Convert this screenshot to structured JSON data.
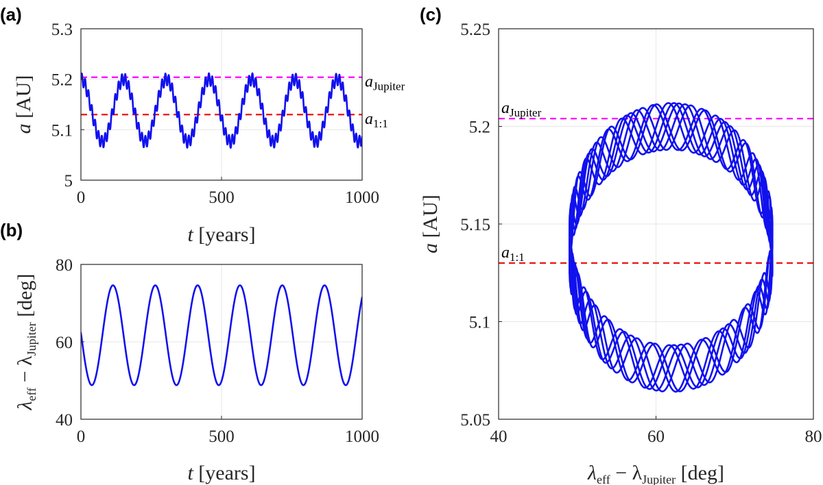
{
  "chart_data": [
    {
      "id": "a",
      "panel_label": "(a)",
      "type": "line",
      "xlabel": {
        "var": "t",
        "unit": "[years]"
      },
      "ylabel": {
        "var": "a",
        "unit": "[AU]"
      },
      "xlim": [
        0,
        1000
      ],
      "ylim": [
        5.0,
        5.3
      ],
      "xticks": [
        0,
        500,
        1000
      ],
      "yticks": [
        5,
        5.1,
        5.2,
        5.3
      ],
      "xtick_labels": [
        "0",
        "500",
        "1000"
      ],
      "ytick_labels": [
        "5",
        "5.1",
        "5.2",
        "5.3"
      ],
      "grid": true,
      "series": [
        {
          "color": "#1111ee",
          "model": {
            "kind": "sinusoid",
            "mean": 5.138,
            "amplitude": 0.062,
            "period": 152,
            "phase_peak_t": 0,
            "ripple_amplitude": 0.012,
            "ripple_period": 11.9
          }
        }
      ],
      "reference_lines": [
        {
          "name": "Jupiter",
          "y": 5.204,
          "color": "#ff00ff",
          "label": {
            "main": "a",
            "sub": "Jupiter"
          }
        },
        {
          "name": "1:1",
          "y": 5.13,
          "color": "#ee1111",
          "label": {
            "main": "a",
            "sub": "1:1"
          }
        }
      ]
    },
    {
      "id": "b",
      "panel_label": "(b)",
      "type": "line",
      "xlabel": {
        "var": "t",
        "unit": "[years]"
      },
      "ylabel": {
        "var": "λ",
        "sub1": "eff",
        "mid": " − λ",
        "sub2": "Jupiter",
        "unit": "[deg]"
      },
      "xlim": [
        0,
        1000
      ],
      "ylim": [
        40,
        80
      ],
      "xticks": [
        0,
        500,
        1000
      ],
      "yticks": [
        40,
        60,
        80
      ],
      "xtick_labels": [
        "0",
        "500",
        "1000"
      ],
      "ytick_labels": [
        "40",
        "60",
        "80"
      ],
      "grid": true,
      "series": [
        {
          "color": "#1111ee",
          "model": {
            "kind": "sinusoid",
            "mean": 61.7,
            "amplitude": 12.9,
            "period": 150.5,
            "phase_peak_t": 114
          }
        }
      ]
    },
    {
      "id": "c",
      "panel_label": "(c)",
      "type": "line",
      "xlabel": {
        "var": "λ",
        "sub1": "eff",
        "mid": " − λ",
        "sub2": "Jupiter",
        "unit": "[deg]"
      },
      "ylabel": {
        "var": "a",
        "unit": "[AU]"
      },
      "xlim": [
        40,
        80
      ],
      "ylim": [
        5.05,
        5.25
      ],
      "xticks": [
        40,
        60,
        80
      ],
      "yticks": [
        5.05,
        5.1,
        5.15,
        5.2,
        5.25
      ],
      "xtick_labels": [
        "40",
        "60",
        "80"
      ],
      "ytick_labels": [
        "5.05",
        "5.1",
        "5.15",
        "5.2",
        "5.25"
      ],
      "grid": true,
      "series": [
        {
          "color": "#1111ee",
          "model": {
            "kind": "phase-loop",
            "center_x": 61.9,
            "center_y": 5.138,
            "radius_x": 12.9,
            "radius_y": 0.062,
            "ripple_amplitude": 0.012,
            "ripples_per_cycle": 12.7,
            "cycles": 6.6
          }
        }
      ],
      "reference_lines": [
        {
          "name": "Jupiter",
          "y": 5.204,
          "color": "#ff00ff",
          "label": {
            "main": "a",
            "sub": "Jupiter"
          }
        },
        {
          "name": "1:1",
          "y": 5.13,
          "color": "#ee1111",
          "label": {
            "main": "a",
            "sub": "1:1"
          }
        }
      ]
    }
  ]
}
